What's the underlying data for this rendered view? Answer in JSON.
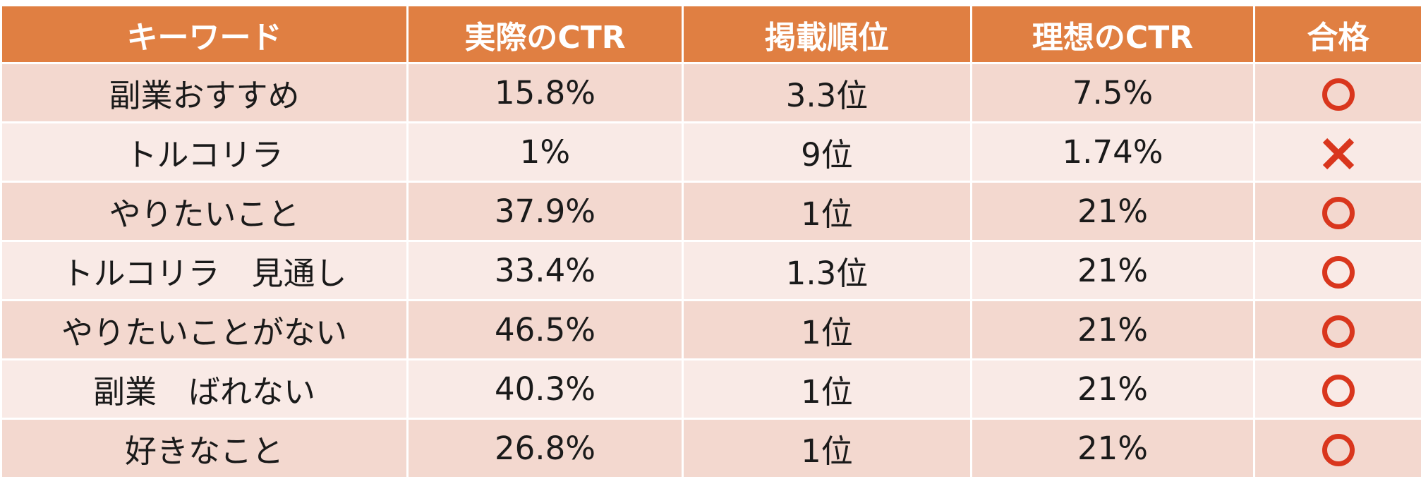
{
  "colors": {
    "header_bg": "#e07f42",
    "row_dark": "#f3d8cf",
    "row_light": "#f9eae6",
    "pass_mark": "#d9361d",
    "fail_mark": "#d9361d"
  },
  "table": {
    "headers": [
      "キーワード",
      "実際のCTR",
      "掲載順位",
      "理想のCTR",
      "合格"
    ],
    "rows": [
      {
        "keyword": "副業おすすめ",
        "actual_ctr": "15.8%",
        "rank": "3.3位",
        "ideal_ctr": "7.5%",
        "pass": "circle-icon"
      },
      {
        "keyword": "トルコリラ",
        "actual_ctr": "1%",
        "rank": "9位",
        "ideal_ctr": "1.74%",
        "pass": "cross-icon"
      },
      {
        "keyword": "やりたいこと",
        "actual_ctr": "37.9%",
        "rank": "1位",
        "ideal_ctr": "21%",
        "pass": "circle-icon"
      },
      {
        "keyword": "トルコリラ　見通し",
        "actual_ctr": "33.4%",
        "rank": "1.3位",
        "ideal_ctr": "21%",
        "pass": "circle-icon"
      },
      {
        "keyword": "やりたいことがない",
        "actual_ctr": "46.5%",
        "rank": "1位",
        "ideal_ctr": "21%",
        "pass": "circle-icon"
      },
      {
        "keyword": "副業　ばれない",
        "actual_ctr": "40.3%",
        "rank": "1位",
        "ideal_ctr": "21%",
        "pass": "circle-icon"
      },
      {
        "keyword": "好きなこと",
        "actual_ctr": "26.8%",
        "rank": "1位",
        "ideal_ctr": "21%",
        "pass": "circle-icon"
      }
    ]
  }
}
